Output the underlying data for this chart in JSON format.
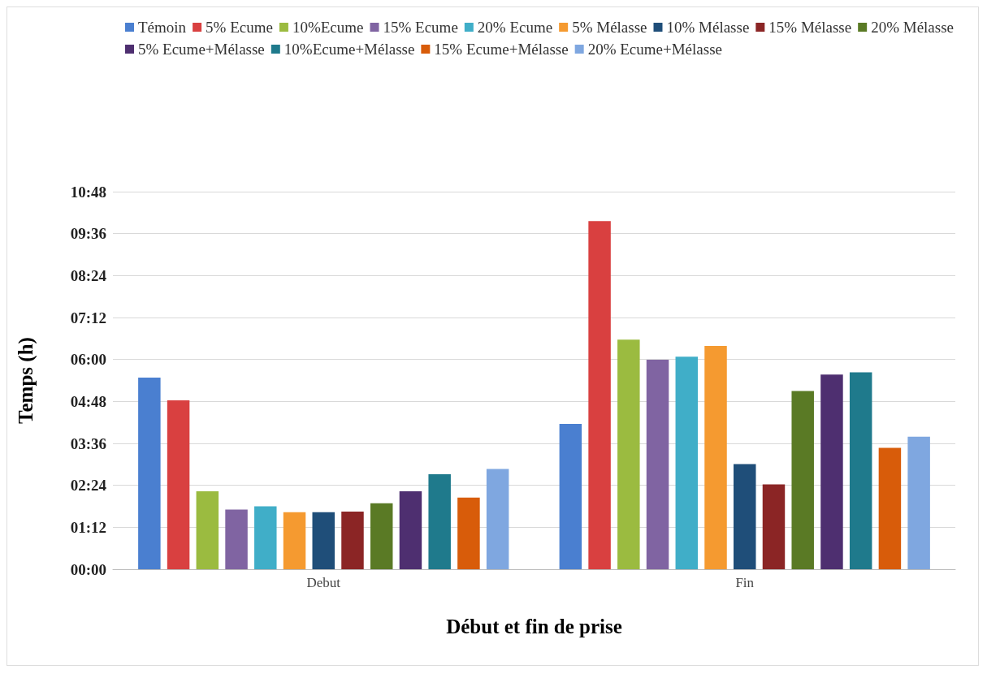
{
  "chart_data": {
    "type": "bar",
    "xlabel": "Début et fin de prise",
    "ylabel": "Temps (h)",
    "categories": [
      "Debut",
      "Fin"
    ],
    "series": [
      {
        "name": "Témoin",
        "color": "#4a7fd0",
        "values": [
          5.48,
          4.16
        ]
      },
      {
        "name": "5% Ecume",
        "color": "#d94040",
        "values": [
          4.83,
          9.96
        ]
      },
      {
        "name": "10%Ecume",
        "color": "#9bbb40",
        "values": [
          2.23,
          6.57
        ]
      },
      {
        "name": "15% Ecume",
        "color": "#8064a2",
        "values": [
          1.71,
          5.99
        ]
      },
      {
        "name": "20% Ecume",
        "color": "#40aec8",
        "values": [
          1.8,
          6.08
        ]
      },
      {
        "name": "5% Mélasse",
        "color": "#f59a30",
        "values": [
          1.63,
          6.39
        ]
      },
      {
        "name": "10% Mélasse",
        "color": "#1f4e79",
        "values": [
          1.63,
          3.01
        ]
      },
      {
        "name": "15% Mélasse",
        "color": "#8b2525",
        "values": [
          1.65,
          2.43
        ]
      },
      {
        "name": "20% Mélasse",
        "color": "#5a7a25",
        "values": [
          1.89,
          5.1
        ]
      },
      {
        "name": "5% Ecume+Mélasse",
        "color": "#4e2f70",
        "values": [
          2.23,
          5.57
        ]
      },
      {
        "name": "10%Ecume+Mélasse",
        "color": "#1f7a8c",
        "values": [
          2.72,
          5.63
        ]
      },
      {
        "name": "15% Ecume+Mélasse",
        "color": "#d85c0a",
        "values": [
          2.05,
          3.47
        ]
      },
      {
        "name": "20% Ecume+Mélasse",
        "color": "#7fa7e0",
        "values": [
          2.87,
          3.79
        ]
      }
    ],
    "ylim": [
      0,
      10.8
    ],
    "yticks": [
      {
        "value": 0,
        "label": "00:00"
      },
      {
        "value": 1.2,
        "label": "01:12"
      },
      {
        "value": 2.4,
        "label": "02:24"
      },
      {
        "value": 3.6,
        "label": "03:36"
      },
      {
        "value": 4.8,
        "label": "04:48"
      },
      {
        "value": 6,
        "label": "06:00"
      },
      {
        "value": 7.2,
        "label": "07:12"
      },
      {
        "value": 8.4,
        "label": "08:24"
      },
      {
        "value": 9.6,
        "label": "09:36"
      },
      {
        "value": 10.8,
        "label": "10:48"
      }
    ],
    "grid": "y",
    "legend": "top"
  }
}
